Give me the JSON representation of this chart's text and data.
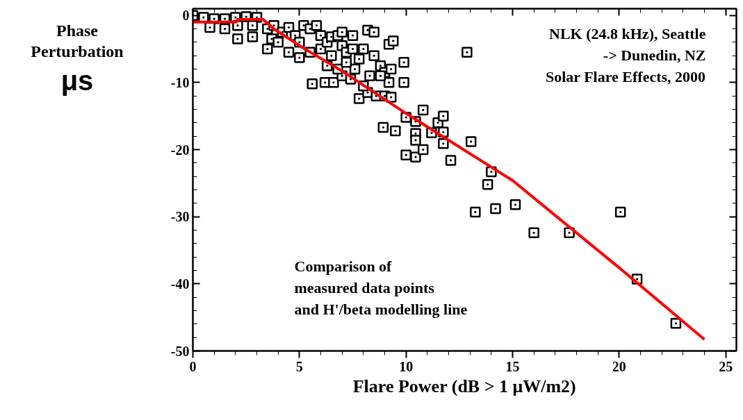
{
  "chart_data": {
    "type": "scatter",
    "xlabel": "Flare Power (dB > 1 μW/m2)",
    "ylabel": "Phase Perturbation μs",
    "annotations": [
      "NLK (24.8 kHz), Seattle\n-> Dunedin, NZ\nSolar Flare Effects, 2000",
      "Comparison of\nmeasured data points\nand H'/beta modelling line"
    ],
    "xlim": [
      0,
      25.5
    ],
    "ylim": [
      -50,
      1
    ],
    "xticks": [
      0,
      5,
      10,
      15,
      20,
      25
    ],
    "yticks": [
      0,
      -10,
      -20,
      -30,
      -40,
      -50
    ],
    "grid": false,
    "marker": "square",
    "series": [
      {
        "type": "scatter",
        "color": "#000000",
        "x": [
          0,
          0.5,
          1,
          1.5,
          2,
          2.5,
          3,
          0.8,
          1.5,
          2.1,
          2.8,
          2.1,
          2.8,
          3.5,
          3.8,
          3.7,
          3.5,
          4,
          4.2,
          4.5,
          4.8,
          5,
          5.2,
          5.5,
          5.5,
          5.8,
          6,
          6,
          6.3,
          6.5,
          6.5,
          6.8,
          7,
          7,
          7.2,
          7.5,
          7.5,
          7.8,
          8,
          8.2,
          8.5,
          8.5,
          8.8,
          9,
          9.2,
          9.4,
          9.3,
          9.2,
          9.9,
          9.9,
          5.6,
          6.2,
          6.6,
          7,
          7.4,
          7.8,
          8.2,
          8.6,
          9,
          9.3,
          6.8,
          7.6,
          8,
          8.3,
          5,
          4.5,
          6.3,
          7.2,
          8.8,
          12.86,
          10.0,
          10.8,
          8.93,
          9.5,
          10.45,
          10.45,
          10.45,
          10.0,
          10.45,
          10.8,
          11.2,
          11.5,
          11.75,
          11.75,
          11.75,
          12.1,
          13.05,
          14.0,
          13.83,
          13.25,
          14.2,
          15.13,
          16.0,
          17.66,
          20.06,
          20.84,
          22.66
        ],
        "values": [
          0,
          -0.3,
          -0.5,
          -0.5,
          -0.3,
          -0.2,
          -0.3,
          -1.8,
          -2,
          -3.5,
          -3.2,
          -1.5,
          -1.5,
          -2,
          -1.5,
          -3.5,
          -5,
          -4,
          -2.5,
          -1.8,
          -3,
          -4,
          -1.5,
          -2,
          -5.5,
          -1.5,
          -3,
          -5,
          -4,
          -3.2,
          -6,
          -3,
          -2.5,
          -4.5,
          -5.5,
          -3,
          -5,
          -6.5,
          -5,
          -2.2,
          -2.5,
          -6,
          -7.5,
          -8.5,
          -4.3,
          -3.8,
          -8,
          -10,
          -7,
          -10,
          -10.2,
          -10,
          -10,
          -9,
          -9.5,
          -12.4,
          -11.5,
          -12,
          -12,
          -12.2,
          -8,
          -8,
          -10.5,
          -9,
          -6.3,
          -5.5,
          -7.5,
          -7,
          -9,
          -5.5,
          -15.2,
          -14.1,
          -16.7,
          -17.2,
          -15.8,
          -17.6,
          -18.6,
          -20.8,
          -21.1,
          -20,
          -17.5,
          -16,
          -15,
          -17.4,
          -19.1,
          -21.6,
          -18.8,
          -23.3,
          -25.2,
          -29.3,
          -28.8,
          -28.2,
          -32.4,
          -32.4,
          -29.3,
          -39.3,
          -45.9
        ]
      },
      {
        "type": "line",
        "color": "#ff0000",
        "marker": "none",
        "x": [
          0,
          2.05,
          2.1,
          3.3,
          3.8,
          5,
          7,
          10,
          12,
          15,
          20,
          24
        ],
        "values": [
          -1.0,
          -1.0,
          -0.6,
          -0.6,
          -2,
          -4.5,
          -8.3,
          -14.6,
          -18.6,
          -24.6,
          -37.6,
          -48.3
        ]
      }
    ]
  }
}
